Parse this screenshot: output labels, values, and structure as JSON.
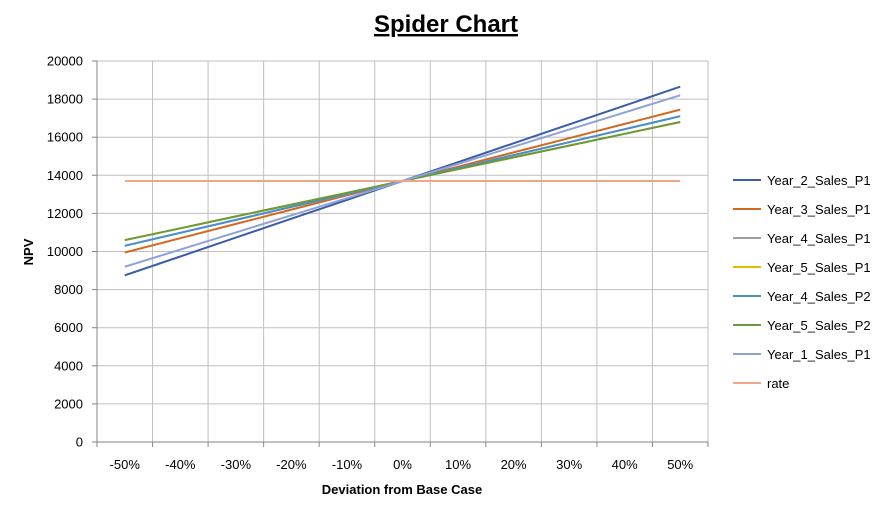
{
  "chart_data": {
    "type": "line",
    "title": "Spider Chart",
    "xlabel": "Deviation from Base Case",
    "ylabel": "NPV",
    "ylim": [
      0,
      20000
    ],
    "yticks": [
      0,
      2000,
      4000,
      6000,
      8000,
      10000,
      12000,
      14000,
      16000,
      18000,
      20000
    ],
    "categories": [
      "-50%",
      "-40%",
      "-30%",
      "-20%",
      "-10%",
      "0%",
      "10%",
      "20%",
      "30%",
      "40%",
      "50%"
    ],
    "x": [
      -50,
      -40,
      -30,
      -20,
      -10,
      0,
      10,
      20,
      30,
      40,
      50
    ],
    "grid": true,
    "legend": "right",
    "series": [
      {
        "name": "Year_2_Sales_P1",
        "color": "#3A5DA8",
        "values": [
          8750,
          9740,
          10730,
          11720,
          12710,
          13700,
          14690,
          15680,
          16670,
          17660,
          18650
        ]
      },
      {
        "name": "Year_3_Sales_P1",
        "color": "#D2691E",
        "values": [
          9950,
          10700,
          11450,
          12200,
          12950,
          13700,
          14450,
          15200,
          15950,
          16700,
          17450
        ]
      },
      {
        "name": "Year_4_Sales_P1",
        "color": "#9E9E9E",
        "values": [
          10300,
          10980,
          11660,
          12340,
          13020,
          13700,
          14380,
          15060,
          15740,
          16420,
          17100
        ]
      },
      {
        "name": "Year_5_Sales_P1",
        "color": "#E6B800",
        "values": [
          10600,
          11220,
          11840,
          12460,
          13080,
          13700,
          14320,
          14940,
          15560,
          16180,
          16800
        ]
      },
      {
        "name": "Year_4_Sales_P2",
        "color": "#4A90C8",
        "values": [
          10300,
          10980,
          11660,
          12340,
          13020,
          13700,
          14380,
          15060,
          15740,
          16420,
          17100
        ]
      },
      {
        "name": "Year_5_Sales_P2",
        "color": "#6B9A3A",
        "values": [
          10600,
          11220,
          11840,
          12460,
          13080,
          13700,
          14320,
          14940,
          15560,
          16180,
          16800
        ]
      },
      {
        "name": "Year_1_Sales_P1",
        "color": "#8EA2D8",
        "values": [
          9200,
          10100,
          11000,
          11900,
          12800,
          13700,
          14600,
          15500,
          16400,
          17300,
          18200
        ]
      },
      {
        "name": "rate",
        "color": "#F0A58A",
        "values": [
          13700,
          13700,
          13700,
          13700,
          13700,
          13700,
          13700,
          13700,
          13700,
          13700,
          13700
        ]
      }
    ]
  }
}
